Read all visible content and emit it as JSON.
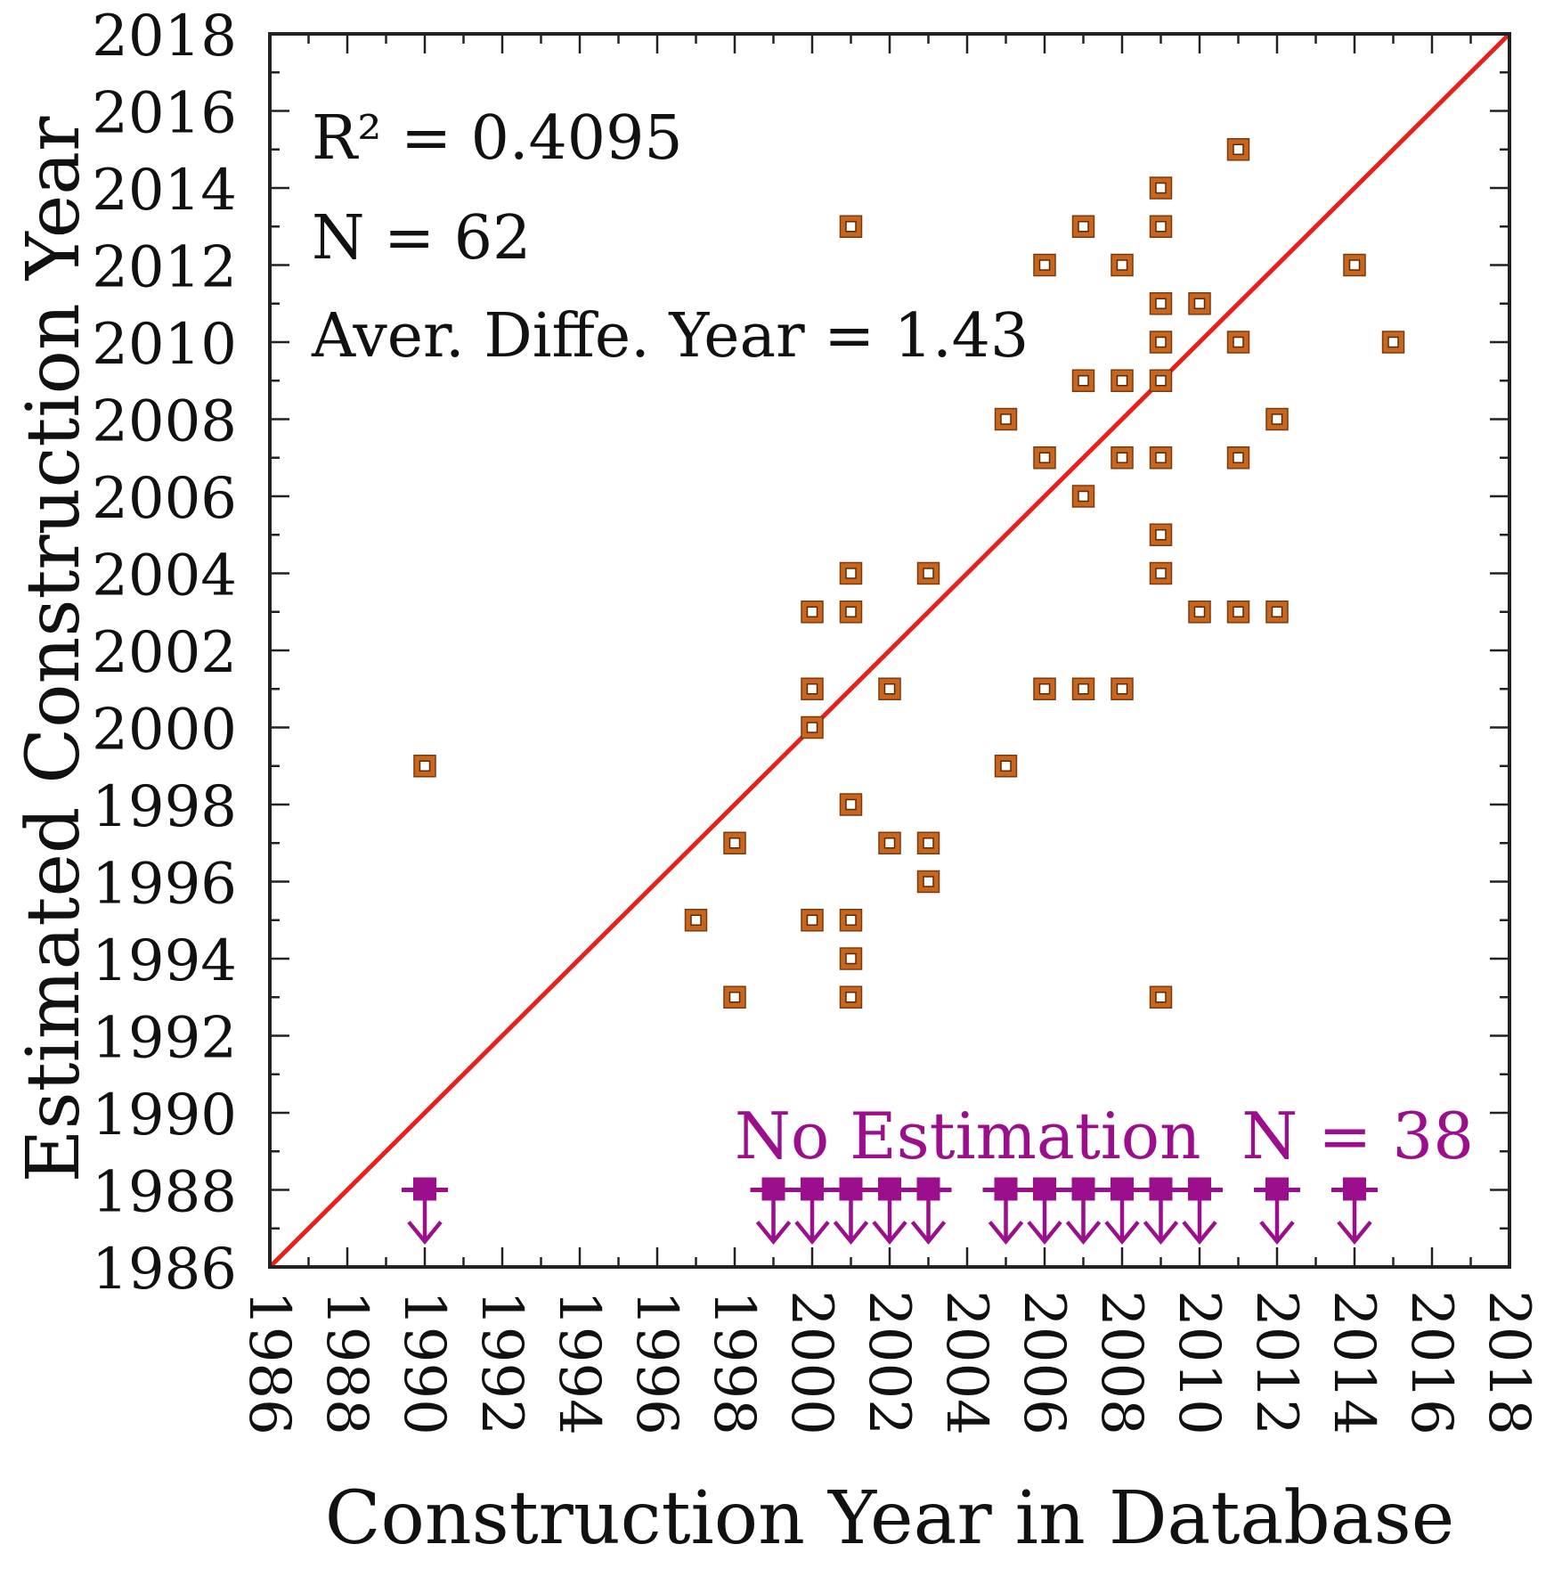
{
  "chart_data": {
    "type": "scatter",
    "title": "",
    "xlabel": "Construction Year in Database",
    "ylabel": "Estimated Construction Year",
    "xlim": [
      1986,
      2018
    ],
    "ylim": [
      1986,
      2018
    ],
    "x_ticks": [
      1986,
      1988,
      1990,
      1992,
      1994,
      1996,
      1998,
      2000,
      2002,
      2004,
      2006,
      2008,
      2010,
      2012,
      2014,
      2016,
      2018
    ],
    "y_ticks": [
      1986,
      1988,
      1990,
      1992,
      1994,
      1996,
      1998,
      2000,
      2002,
      2004,
      2006,
      2008,
      2010,
      2012,
      2014,
      2016,
      2018
    ],
    "x_tick_labels": [
      "1986",
      "1988",
      "1990",
      "1992",
      "1994",
      "1996",
      "1998",
      "2000",
      "2002",
      "2004",
      "2006",
      "2008",
      "2010",
      "2012",
      "2014",
      "2016",
      "2018"
    ],
    "y_tick_labels": [
      "1986",
      "1988",
      "1990",
      "1992",
      "1994",
      "1996",
      "1998",
      "2000",
      "2002",
      "2004",
      "2006",
      "2008",
      "2010",
      "2012",
      "2014",
      "2016",
      "2018"
    ],
    "grid": false,
    "annotations": {
      "r2": "R² = 0.4095",
      "n": "N = 62",
      "avg_diff": "Aver. Diffe. Year = 1.43",
      "no_estimation": "No Estimation  N = 38"
    },
    "reference_line": {
      "name": "y = x",
      "from": [
        1986,
        1986
      ],
      "to": [
        2018,
        2018
      ],
      "color": "#e8201a"
    },
    "series": [
      {
        "name": "Estimated",
        "marker": "hollow-square",
        "color": "#c8661e",
        "points": [
          [
            1990,
            1999
          ],
          [
            1997,
            1995
          ],
          [
            1998,
            1997
          ],
          [
            1998,
            1993
          ],
          [
            2000,
            2003
          ],
          [
            2000,
            2001
          ],
          [
            2000,
            2000
          ],
          [
            2000,
            1995
          ],
          [
            2001,
            2013
          ],
          [
            2001,
            2004
          ],
          [
            2001,
            2003
          ],
          [
            2001,
            1998
          ],
          [
            2001,
            1995
          ],
          [
            2001,
            1994
          ],
          [
            2001,
            1993
          ],
          [
            2002,
            2001
          ],
          [
            2002,
            1997
          ],
          [
            2003,
            2004
          ],
          [
            2003,
            1997
          ],
          [
            2003,
            1996
          ],
          [
            2005,
            2008
          ],
          [
            2005,
            1999
          ],
          [
            2006,
            2012
          ],
          [
            2006,
            2007
          ],
          [
            2006,
            2001
          ],
          [
            2007,
            2013
          ],
          [
            2007,
            2009
          ],
          [
            2007,
            2006
          ],
          [
            2007,
            2001
          ],
          [
            2008,
            2012
          ],
          [
            2008,
            2009
          ],
          [
            2008,
            2007
          ],
          [
            2008,
            2001
          ],
          [
            2009,
            2014
          ],
          [
            2009,
            2013
          ],
          [
            2009,
            2011
          ],
          [
            2009,
            2010
          ],
          [
            2009,
            2009
          ],
          [
            2009,
            2007
          ],
          [
            2009,
            2005
          ],
          [
            2009,
            2004
          ],
          [
            2009,
            1993
          ],
          [
            2010,
            2011
          ],
          [
            2010,
            2003
          ],
          [
            2011,
            2015
          ],
          [
            2011,
            2010
          ],
          [
            2011,
            2007
          ],
          [
            2011,
            2003
          ],
          [
            2012,
            2008
          ],
          [
            2012,
            2003
          ],
          [
            2014,
            2012
          ],
          [
            2015,
            2010
          ]
        ]
      },
      {
        "name": "No Estimation",
        "marker": "down-arrow",
        "color": "#9c0f8c",
        "y": 1988,
        "x": [
          1990,
          1999,
          2000,
          2001,
          2002,
          2003,
          2005,
          2006,
          2007,
          2008,
          2009,
          2010,
          2012,
          2014
        ]
      }
    ]
  }
}
